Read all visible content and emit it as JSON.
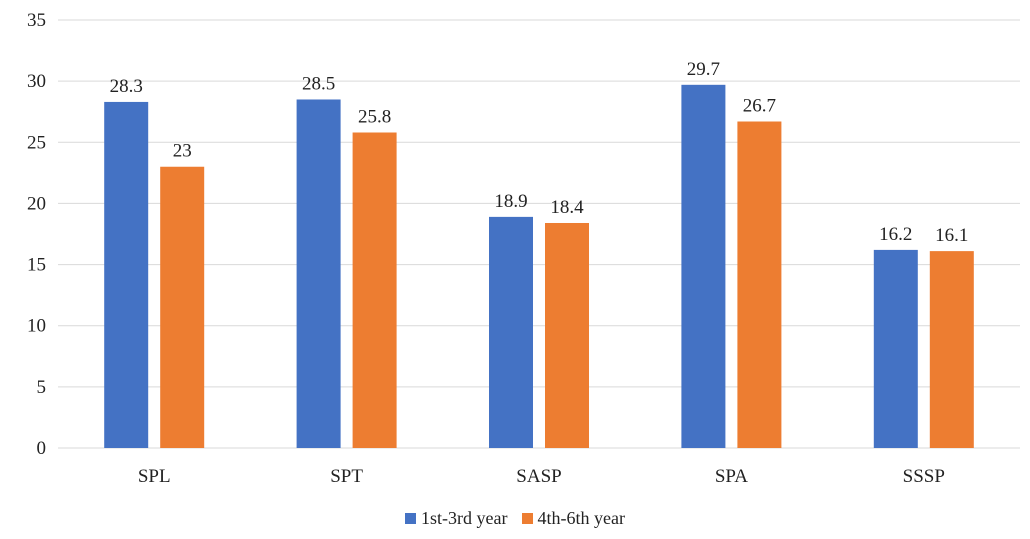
{
  "chart_data": {
    "type": "bar",
    "categories": [
      "SPL",
      "SPT",
      "SASP",
      "SPA",
      "SSSP"
    ],
    "series": [
      {
        "name": "1st-3rd year",
        "color": "#4472C4",
        "values": [
          28.3,
          28.5,
          18.9,
          29.7,
          16.2
        ]
      },
      {
        "name": "4th-6th year",
        "color": "#ED7D31",
        "values": [
          23,
          25.8,
          18.4,
          26.7,
          16.1
        ]
      }
    ],
    "data_labels": [
      [
        "28.3",
        "28.5",
        "18.9",
        "29.7",
        "16.2"
      ],
      [
        "23",
        "25.8",
        "18.4",
        "26.7",
        "16.1"
      ]
    ],
    "y_ticks": [
      "0",
      "5",
      "10",
      "15",
      "20",
      "25",
      "30",
      "35"
    ],
    "ylim": [
      0,
      35
    ],
    "grid": true,
    "grid_color": "#D9D9D9",
    "legend_position": "bottom",
    "title": "",
    "xlabel": "",
    "ylabel": ""
  }
}
